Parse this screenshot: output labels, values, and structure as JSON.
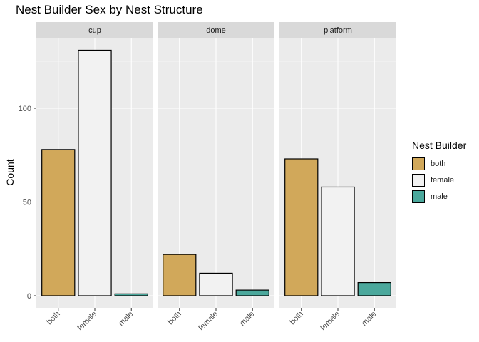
{
  "chart_data": {
    "type": "bar",
    "title": "Nest Builder Sex by Nest Structure",
    "xlabel": "",
    "ylabel": "Count",
    "ylim": [
      0,
      140
    ],
    "yticks": [
      0,
      50,
      100
    ],
    "categories": [
      "both",
      "female",
      "male"
    ],
    "facets": [
      {
        "name": "cup",
        "values": [
          78,
          131,
          1
        ]
      },
      {
        "name": "dome",
        "values": [
          22,
          12,
          3
        ]
      },
      {
        "name": "platform",
        "values": [
          73,
          58,
          7
        ]
      }
    ],
    "legend": {
      "title": "Nest Builder",
      "placement": "right",
      "entries": [
        {
          "label": "both",
          "color": "#D1A85A"
        },
        {
          "label": "female",
          "color": "#F2F2F2"
        },
        {
          "label": "male",
          "color": "#4BA89C"
        }
      ]
    },
    "grid": true,
    "panel_background": "#EBEBEB",
    "strip_background": "#D9D9D9"
  }
}
